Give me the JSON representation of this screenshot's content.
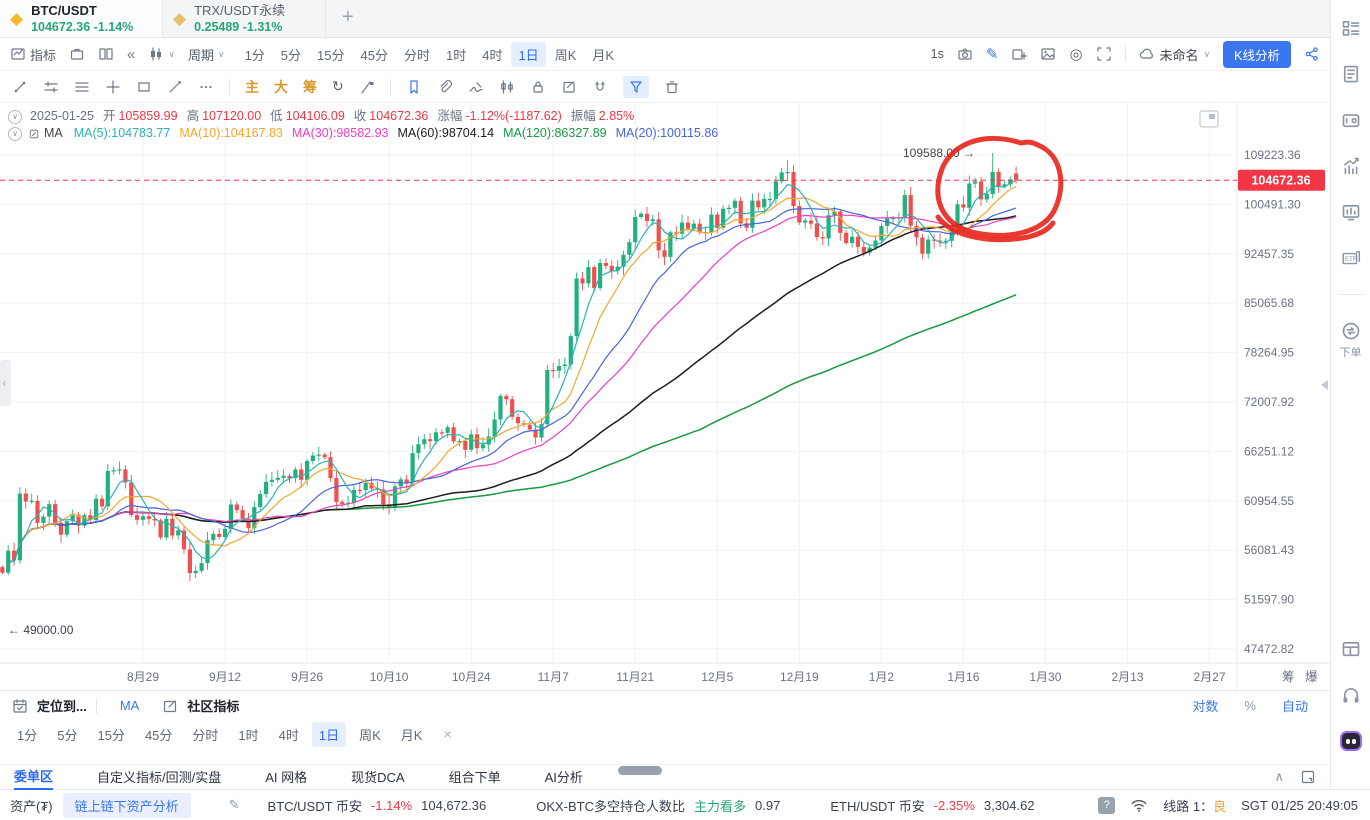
{
  "tabs": {
    "items": [
      {
        "symbol": "BTC/USDT",
        "price": "104672.36",
        "change": "-1.14%"
      },
      {
        "symbol": "TRX/USDT永续",
        "price": "0.25489",
        "change": "-1.31%"
      }
    ],
    "add_label": "+"
  },
  "toolbar": {
    "indicator_label": "指标",
    "period_label": "周期",
    "timeframes": [
      "1分",
      "5分",
      "15分",
      "45分",
      "分时",
      "1时",
      "4时",
      "1日",
      "周K",
      "月K"
    ],
    "active_timeframe": "1日",
    "speed": "1s",
    "cloud_name": "未命名",
    "analyze_button": "K线分析"
  },
  "drawbar": {
    "main": "主",
    "large": "大",
    "chips": "筹"
  },
  "legend": {
    "ohlc": {
      "date": "2025-01-25",
      "open_label": "开",
      "open": "105859.99",
      "high_label": "高",
      "high": "107120.00",
      "low_label": "低",
      "low": "104106.09",
      "close_label": "收",
      "close": "104672.36",
      "change_label": "涨幅",
      "change": "-1.12%(-1187.62)",
      "amplitude_label": "振幅",
      "amplitude": "2.85%"
    },
    "ma": {
      "title": "MA",
      "items": [
        {
          "label": "MA(5):",
          "value": "104783.77",
          "color": "#2bb3b3"
        },
        {
          "label": "MA(10):",
          "value": "104167.83",
          "color": "#f5a62b"
        },
        {
          "label": "MA(30):",
          "value": "98582.93",
          "color": "#ee3fc0"
        },
        {
          "label": "MA(60):",
          "value": "98704.14",
          "color": "#1d1d1d"
        },
        {
          "label": "MA(120):",
          "value": "86327.89",
          "color": "#169a43"
        },
        {
          "label": "MA(20):",
          "value": "100115.86",
          "color": "#4a63e0"
        }
      ]
    }
  },
  "chart_data": {
    "type": "candlestick",
    "symbol": "BTC/USDT",
    "interval": "1日",
    "scale": "log",
    "up_color": "#21b07e",
    "down_color": "#ef4f4f",
    "start_date": "2024-08-05",
    "closes": [
      53990,
      56030,
      55130,
      61710,
      60880,
      60940,
      58720,
      59350,
      60600,
      58740,
      57560,
      58890,
      59490,
      58460,
      59490,
      59010,
      61170,
      60380,
      64090,
      64180,
      64270,
      62880,
      59500,
      59030,
      59388,
      59119,
      58970,
      57300,
      59130,
      57490,
      57970,
      56160,
      53950,
      54160,
      54870,
      57040,
      57640,
      57340,
      58130,
      60570,
      60000,
      59130,
      58220,
      60310,
      61650,
      62940,
      63150,
      63350,
      63580,
      63330,
      64260,
      63150,
      65180,
      65790,
      65890,
      65600,
      63330,
      60840,
      60630,
      60750,
      62080,
      62060,
      62820,
      62230,
      62130,
      60580,
      60280,
      62450,
      63190,
      62850,
      66050,
      67040,
      67620,
      67400,
      68420,
      68360,
      69000,
      67380,
      67420,
      66430,
      68170,
      66600,
      67020,
      67930,
      69910,
      72720,
      72340,
      70220,
      69480,
      69290,
      68740,
      67810,
      69360,
      76000,
      75900,
      76500,
      76700,
      80470,
      88700,
      87950,
      90400,
      87250,
      91030,
      90580,
      89850,
      90460,
      92310,
      94290,
      98380,
      98930,
      97700,
      98000,
      93010,
      91980,
      95860,
      95650,
      97460,
      96450,
      97280,
      95840,
      95900,
      98770,
      96590,
      99740,
      99920,
      101110,
      97330,
      96590,
      101130,
      100000,
      101420,
      101420,
      104460,
      106060,
      106140,
      100200,
      97460,
      97800,
      97290,
      95100,
      94880,
      98670,
      99300,
      95790,
      94160,
      95160,
      93530,
      92640,
      93430,
      94560,
      96890,
      98110,
      98220,
      98310,
      102080,
      96920,
      95040,
      92480,
      94700,
      94560,
      94480,
      94510,
      96560,
      100500,
      99940,
      104080,
      104460,
      101330,
      102260,
      106150,
      103650,
      103960,
      104820,
      104672.36
    ],
    "overrides": {
      "134": {
        "high": 108268.0
      },
      "169": {
        "high": 109588.0
      },
      "173": {
        "open": 105859.99,
        "high": 107120.0,
        "low": 104106.09,
        "close": 104672.36
      }
    },
    "ma_periods": [
      120,
      60,
      30,
      20,
      10,
      5
    ],
    "ma_colors": {
      "5": "#2bb3b3",
      "10": "#f5a62b",
      "20": "#4a63e0",
      "30": "#ee3fc0",
      "60": "#1d1d1d",
      "120": "#169a43"
    },
    "current_price": 104672.36,
    "current_price_label": "104672.36",
    "high_annotation": {
      "label": "109588.00 →",
      "price": 109588.0,
      "candle_index": 169
    },
    "left_marker": {
      "label": "← 49000.00",
      "price": 49000
    },
    "y_ticks": [
      109223.36,
      100491.3,
      92457.35,
      85065.68,
      78264.95,
      72007.92,
      66251.12,
      60954.55,
      56081.43,
      51597.9,
      47472.82
    ],
    "x_labels": [
      "8月29",
      "9月12",
      "9月26",
      "10月10",
      "10月24",
      "11月7",
      "11月21",
      "12月5",
      "12月19",
      "1月2",
      "1月16",
      "1月30",
      "2月13",
      "2月27"
    ],
    "corner_labels": [
      "筹",
      "爆"
    ],
    "annotation": {
      "type": "hand-drawn-circle",
      "color": "#e8281e"
    }
  },
  "panel": {
    "tab_locate": "定位到...",
    "tab_ma": "MA",
    "tab_community": "社区指标",
    "timeframes": [
      "1分",
      "5分",
      "15分",
      "45分",
      "分时",
      "1时",
      "4时",
      "1日",
      "周K",
      "月K"
    ],
    "active_timeframe": "1日",
    "close_label": "×",
    "right": [
      "对数",
      "%",
      "自动"
    ]
  },
  "bottom_tabs": {
    "items": [
      "委单区",
      "自定义指标/回测/实盘",
      "AI 网格",
      "现货DCA",
      "组合下单",
      "AI分析"
    ],
    "active": "委单区"
  },
  "statusbar": {
    "asset_label": "资产(₮)",
    "analysis_chip": "链上链下资产分析",
    "btc": {
      "pair": "BTC/USDT 币安",
      "change": "-1.14%",
      "price": "104,672.36"
    },
    "okx": {
      "label": "OKX-BTC多空持仓人数比",
      "signal": "主力看多",
      "value": "0.97"
    },
    "eth": {
      "pair": "ETH/USDT 币安",
      "change": "-2.35%",
      "price": "3,304.62"
    },
    "line_label": "线路 1：",
    "line_status": "良",
    "time": "SGT 01/25 20:49:05"
  },
  "rail": {
    "order_label": "下单"
  }
}
